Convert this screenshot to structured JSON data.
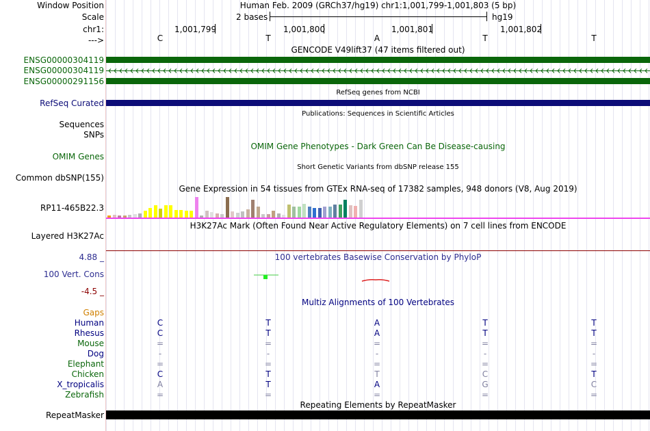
{
  "labels": {
    "window_position": "Window Position",
    "scale": "Scale",
    "chrom": "chr1:",
    "arrow": "--->",
    "gencode_1": "ENSG00000304119",
    "gencode_2": "ENSG00000304119",
    "gencode_3": "ENSG00000291156",
    "refseq": "RefSeq Curated",
    "sequences": "Sequences",
    "snps": "SNPs",
    "omim": "OMIM Genes",
    "dbsnp": "Common dbSNP(155)",
    "gtex": "RP11-465B22.3",
    "h3k27ac": "Layered H3K27Ac",
    "phylop_max": "4.88 _",
    "phylop_name": "100 Vert. Cons",
    "phylop_min": "-4.5 _",
    "gaps": "Gaps",
    "species": [
      "Human",
      "Rhesus",
      "Mouse",
      "Dog",
      "Elephant",
      "Chicken",
      "X_tropicalis",
      "Zebrafish"
    ],
    "repeatmasker": "RepeatMasker"
  },
  "header": {
    "assembly": "Human Feb. 2009 (GRCh37/hg19)   chr1:1,001,799-1,001,803 (5 bp)",
    "scale_label": "2 bases",
    "scale_db": "hg19",
    "positions": [
      "1,001,799",
      "1,001,800",
      "1,001,801",
      "1,001,802"
    ],
    "bases": [
      "C",
      "T",
      "A",
      "T",
      "T"
    ]
  },
  "tracks": {
    "gencode_title": "GENCODE V49lift37 (47 items filtered out)",
    "refseq_title": "RefSeq genes from NCBI",
    "pubs_title": "Publications: Sequences in Scientific Articles",
    "omim_title": "OMIM Gene Phenotypes - Dark Green Can Be Disease-causing",
    "dbsnp_title": "Short Genetic Variants from dbSNP release 155",
    "gtex_title": "Gene Expression in 54 tissues from GTEx RNA-seq of 17382 samples, 948 donors (V8, Aug 2019)",
    "h3k27ac_title": "H3K27Ac Mark (Often Found Near Active Regulatory Elements) on 7 cell lines from ENCODE",
    "phylop_title": "100 vertebrates Basewise Conservation by PhyloP",
    "multiz_title": "Multiz Alignments of 100 Vertebrates",
    "repeat_title": "Repeating Elements by RepeatMasker"
  },
  "alignment": {
    "rows": [
      [
        "C",
        "T",
        "A",
        "T",
        "T"
      ],
      [
        "C",
        "T",
        "A",
        "T",
        "T"
      ],
      [
        "=",
        "=",
        "=",
        "=",
        "="
      ],
      [
        "-",
        "-",
        "-",
        "-",
        "-"
      ],
      [
        "=",
        "=",
        "=",
        "=",
        "="
      ],
      [
        "C",
        "T",
        "T",
        "C",
        "T"
      ],
      [
        "A",
        "T",
        "A",
        "G",
        "C"
      ],
      [
        "=",
        "=",
        "=",
        "=",
        "="
      ]
    ]
  },
  "gtex_levels": [
    0.1,
    0.12,
    0.08,
    0.1,
    0.12,
    0.15,
    0.2,
    0.32,
    0.45,
    0.55,
    0.4,
    0.55,
    0.55,
    0.35,
    0.35,
    0.3,
    0.3,
    0.95,
    0.08,
    0.3,
    0.25,
    0.2,
    0.15,
    0.95,
    0.28,
    0.22,
    0.28,
    0.38,
    0.8,
    0.5,
    0.15,
    0.15,
    0.3,
    0.18,
    0.12,
    0.6,
    0.5,
    0.5,
    0.62,
    0.5,
    0.45,
    0.45,
    0.5,
    0.5,
    0.6,
    0.6,
    0.8,
    0.55,
    0.52,
    0.82
  ],
  "gtex_colors": [
    "#f0a000",
    "#e0c0c0",
    "#c080a0",
    "#c8a070",
    "#c8c8c8",
    "#e0e0e0",
    "#b0b0b0",
    "#ffff00",
    "#ffff00",
    "#ffff00",
    "#d0d000",
    "#ffff00",
    "#ffff00",
    "#ffff00",
    "#ffff00",
    "#ffff00",
    "#ffff00",
    "#ee82ee",
    "#b0b0b0",
    "#d0c0c0",
    "#e0e0e0",
    "#d8b0b0",
    "#c8c8c8",
    "#8b6d50",
    "#e0c8c8",
    "#d0d0d0",
    "#c0c0c0",
    "#c8b0a0",
    "#a08070",
    "#c0a890",
    "#c8c8c8",
    "#c8a0a0",
    "#c0a080",
    "#b0b0b0",
    "#e0e0e0",
    "#c0c070",
    "#a0c0a0",
    "#a0d8a0",
    "#c0e0c0",
    "#5080c0",
    "#3070d0",
    "#4060b0",
    "#a0a0d0",
    "#80b0c0",
    "#6080a0",
    "#40a060",
    "#008060",
    "#e0c0c0",
    "#f0b0b0",
    "#d0d0d0"
  ]
}
